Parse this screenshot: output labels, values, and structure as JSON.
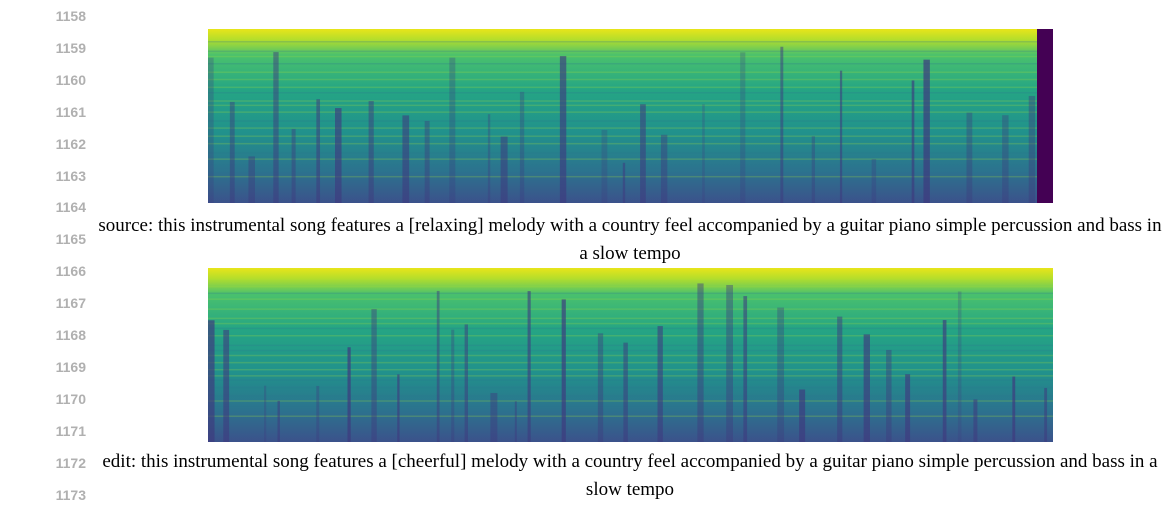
{
  "line_numbers": [
    1158,
    1159,
    1160,
    1161,
    1162,
    1163,
    1164,
    1165,
    1166,
    1167,
    1168,
    1169,
    1170,
    1171,
    1172,
    1173
  ],
  "figures": [
    {
      "caption": "source: this instrumental song features a [relaxing] melody with a country feel accompanied by a guitar piano simple percussion and bass in a slow tempo"
    },
    {
      "caption": "edit: this instrumental song features a [cheerful] melody with a country feel accompanied by a guitar piano simple percussion and bass in a slow tempo"
    }
  ]
}
